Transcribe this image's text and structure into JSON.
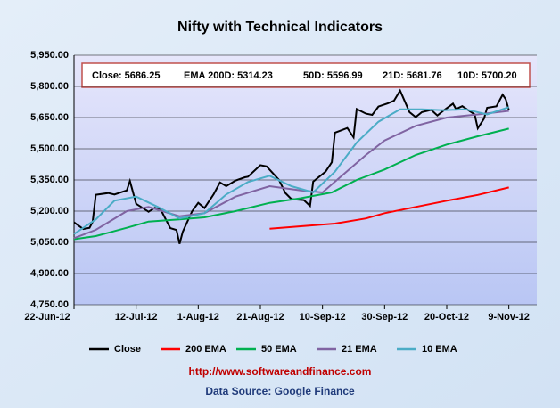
{
  "chart_data": {
    "type": "line",
    "title": "Nifty with Technical Indicators",
    "annotations": [
      "Close: 5686.25",
      "EMA  200D: 5314.23",
      "50D: 5596.99",
      "21D: 5681.76",
      "10D: 5700.20"
    ],
    "footer": [
      "http://www.softwareandfinance.com",
      "Data Source: Google Finance"
    ],
    "xlim": [
      "2012-06-22",
      "2012-11-18"
    ],
    "xticks": [
      {
        "value": "2012-06-22",
        "label": "22-Jun-12"
      },
      {
        "value": "2012-07-12",
        "label": "12-Jul-12"
      },
      {
        "value": "2012-08-01",
        "label": "1-Aug-12"
      },
      {
        "value": "2012-08-21",
        "label": "21-Aug-12"
      },
      {
        "value": "2012-09-10",
        "label": "10-Sep-12"
      },
      {
        "value": "2012-09-30",
        "label": "30-Sep-12"
      },
      {
        "value": "2012-10-20",
        "label": "20-Oct-12"
      },
      {
        "value": "2012-11-09",
        "label": "9-Nov-12"
      }
    ],
    "ylim": [
      4750,
      5950
    ],
    "yticks": [
      {
        "value": 4750,
        "label": "4,750.00"
      },
      {
        "value": 4900,
        "label": "4,900.00"
      },
      {
        "value": 5050,
        "label": "5,050.00"
      },
      {
        "value": 5200,
        "label": "5,200.00"
      },
      {
        "value": 5350,
        "label": "5,350.00"
      },
      {
        "value": 5500,
        "label": "5,500.00"
      },
      {
        "value": 5650,
        "label": "5,650.00"
      },
      {
        "value": 5800,
        "label": "5,800.00"
      },
      {
        "value": 5950,
        "label": "5,950.00"
      }
    ],
    "grid": true,
    "series": [
      {
        "name": "Close",
        "color": "#000000",
        "x": [
          "2012-06-22",
          "2012-06-25",
          "2012-06-27",
          "2012-06-28",
          "2012-06-29",
          "2012-07-03",
          "2012-07-05",
          "2012-07-09",
          "2012-07-10",
          "2012-07-12",
          "2012-07-16",
          "2012-07-18",
          "2012-07-20",
          "2012-07-23",
          "2012-07-25",
          "2012-07-26",
          "2012-07-27",
          "2012-07-30",
          "2012-08-01",
          "2012-08-03",
          "2012-08-06",
          "2012-08-08",
          "2012-08-10",
          "2012-08-13",
          "2012-08-16",
          "2012-08-17",
          "2012-08-21",
          "2012-08-23",
          "2012-08-27",
          "2012-08-29",
          "2012-08-31",
          "2012-09-04",
          "2012-09-06",
          "2012-09-07",
          "2012-09-11",
          "2012-09-13",
          "2012-09-14",
          "2012-09-18",
          "2012-09-20",
          "2012-09-21",
          "2012-09-24",
          "2012-09-26",
          "2012-09-28",
          "2012-10-01",
          "2012-10-03",
          "2012-10-05",
          "2012-10-08",
          "2012-10-10",
          "2012-10-12",
          "2012-10-15",
          "2012-10-17",
          "2012-10-19",
          "2012-10-22",
          "2012-10-23",
          "2012-10-25",
          "2012-10-29",
          "2012-10-30",
          "2012-11-01",
          "2012-11-02",
          "2012-11-05",
          "2012-11-07",
          "2012-11-08",
          "2012-11-09"
        ],
        "values": [
          5146,
          5114,
          5120,
          5149,
          5279,
          5287,
          5280,
          5300,
          5345,
          5235,
          5197,
          5216,
          5205,
          5118,
          5109,
          5043,
          5100,
          5199,
          5240,
          5215,
          5282,
          5338,
          5320,
          5347,
          5363,
          5366,
          5421,
          5415,
          5350,
          5288,
          5258,
          5253,
          5225,
          5342,
          5390,
          5435,
          5577,
          5600,
          5555,
          5691,
          5669,
          5663,
          5703,
          5718,
          5731,
          5780,
          5676,
          5652,
          5676,
          5687,
          5660,
          5684,
          5717,
          5691,
          5705,
          5665,
          5598,
          5645,
          5697,
          5704,
          5760,
          5738,
          5686
        ]
      },
      {
        "name": "200 EMA",
        "color": "#ff0000",
        "x": [
          "2012-08-24",
          "2012-09-03",
          "2012-09-14",
          "2012-09-24",
          "2012-09-30",
          "2012-10-10",
          "2012-10-20",
          "2012-10-30",
          "2012-11-09"
        ],
        "values": [
          5115,
          5127,
          5140,
          5165,
          5190,
          5220,
          5250,
          5278,
          5314
        ]
      },
      {
        "name": "50 EMA",
        "color": "#00b050",
        "x": [
          "2012-06-22",
          "2012-06-29",
          "2012-07-09",
          "2012-07-16",
          "2012-07-26",
          "2012-08-03",
          "2012-08-13",
          "2012-08-24",
          "2012-09-03",
          "2012-09-13",
          "2012-09-21",
          "2012-09-30",
          "2012-10-10",
          "2012-10-20",
          "2012-10-30",
          "2012-11-09"
        ],
        "values": [
          5065,
          5080,
          5120,
          5150,
          5160,
          5170,
          5200,
          5240,
          5262,
          5290,
          5350,
          5400,
          5470,
          5520,
          5560,
          5597
        ]
      },
      {
        "name": "21 EMA",
        "color": "#8064a2",
        "x": [
          "2012-06-22",
          "2012-06-29",
          "2012-07-09",
          "2012-07-16",
          "2012-07-26",
          "2012-08-03",
          "2012-08-13",
          "2012-08-24",
          "2012-09-03",
          "2012-09-10",
          "2012-09-17",
          "2012-09-24",
          "2012-09-30",
          "2012-10-10",
          "2012-10-20",
          "2012-10-30",
          "2012-11-09"
        ],
        "values": [
          5070,
          5110,
          5200,
          5220,
          5175,
          5190,
          5270,
          5320,
          5300,
          5290,
          5380,
          5470,
          5540,
          5610,
          5650,
          5665,
          5682
        ]
      },
      {
        "name": "10 EMA",
        "color": "#4bacc6",
        "x": [
          "2012-06-22",
          "2012-06-29",
          "2012-07-05",
          "2012-07-12",
          "2012-07-19",
          "2012-07-26",
          "2012-08-03",
          "2012-08-10",
          "2012-08-17",
          "2012-08-24",
          "2012-08-31",
          "2012-09-07",
          "2012-09-14",
          "2012-09-21",
          "2012-09-28",
          "2012-10-05",
          "2012-10-12",
          "2012-10-19",
          "2012-10-26",
          "2012-11-02",
          "2012-11-09"
        ],
        "values": [
          5090,
          5160,
          5250,
          5270,
          5220,
          5165,
          5190,
          5280,
          5340,
          5370,
          5320,
          5290,
          5390,
          5530,
          5630,
          5690,
          5690,
          5685,
          5690,
          5665,
          5700
        ]
      }
    ]
  }
}
